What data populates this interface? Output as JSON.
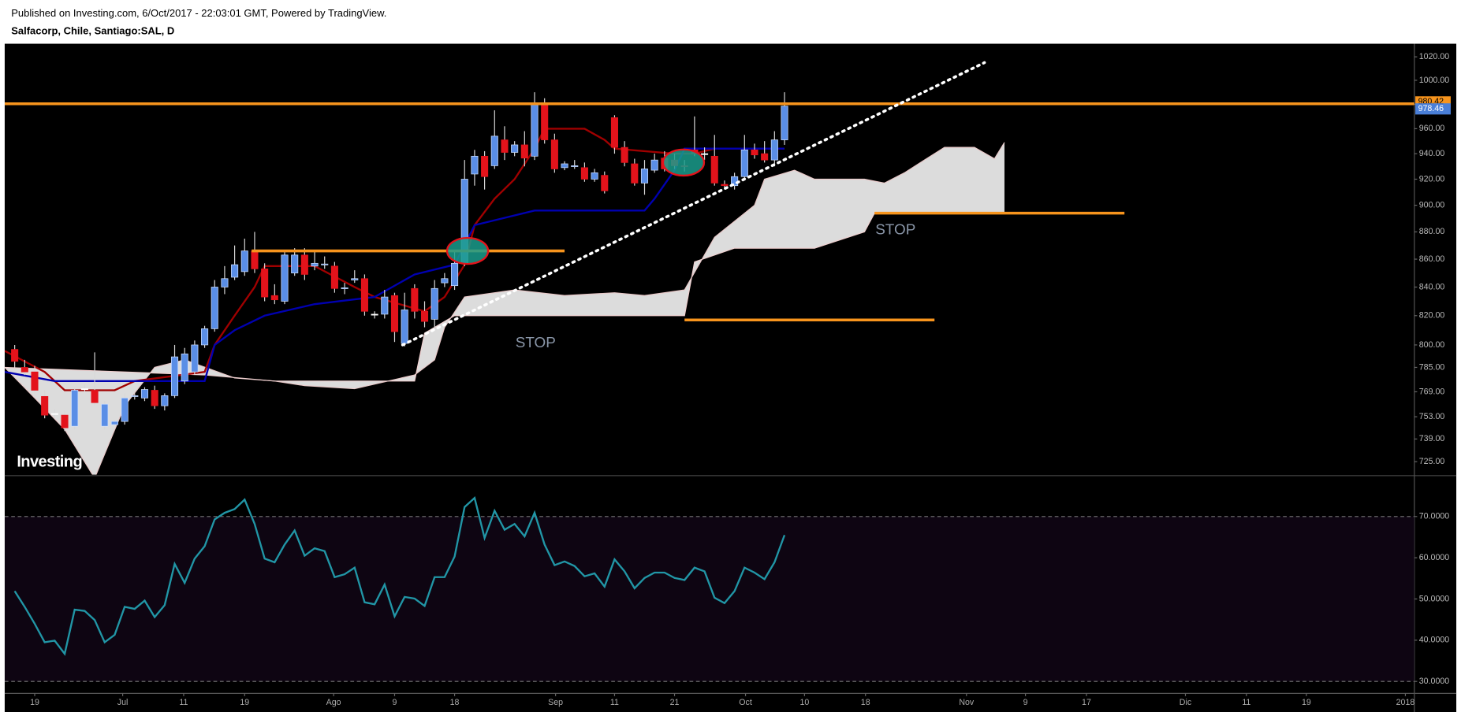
{
  "header": {
    "published": "Published on Investing.com, 6/Oct/2017 - 22:03:01 GMT, Powered by TradingView."
  },
  "chart_data": [
    {
      "type": "candlestick",
      "title": "Salfacorp, Chile, Santiago:SAL, D",
      "watermark": "Investing",
      "log_scale": true,
      "up_color": "#5a8ee6",
      "down_color": "#e3131b",
      "xlim": [
        -1,
        140
      ],
      "ylim": [
        717.1,
        1031.3
      ],
      "xticks": [
        {
          "value": 2.0,
          "label": "19"
        },
        {
          "value": 10.8,
          "label": "Jul"
        },
        {
          "value": 16.9,
          "label": "11"
        },
        {
          "value": 23.0,
          "label": "19"
        },
        {
          "value": 31.9,
          "label": "Ago"
        },
        {
          "value": 38.0,
          "label": "9"
        },
        {
          "value": 44.0,
          "label": "18"
        },
        {
          "value": 54.1,
          "label": "Sep"
        },
        {
          "value": 60.0,
          "label": "11"
        },
        {
          "value": 66.0,
          "label": "21"
        },
        {
          "value": 73.1,
          "label": "Oct"
        },
        {
          "value": 79.0,
          "label": "10"
        },
        {
          "value": 85.1,
          "label": "18"
        },
        {
          "value": 95.2,
          "label": "Nov"
        },
        {
          "value": 101.1,
          "label": "9"
        },
        {
          "value": 107.2,
          "label": "17"
        },
        {
          "value": 117.1,
          "label": "Dic"
        },
        {
          "value": 123.2,
          "label": "11"
        },
        {
          "value": 129.2,
          "label": "19"
        },
        {
          "value": 139.1,
          "label": "2018"
        }
      ],
      "yticks": [
        {
          "value": 1020,
          "label": "1020.00"
        },
        {
          "value": 1000,
          "label": "1000.00"
        },
        {
          "value": 980,
          "label": "980.00"
        },
        {
          "value": 960,
          "label": "960.00"
        },
        {
          "value": 940,
          "label": "940.00"
        },
        {
          "value": 920,
          "label": "920.00"
        },
        {
          "value": 900,
          "label": "900.00"
        },
        {
          "value": 880,
          "label": "880.00"
        },
        {
          "value": 860,
          "label": "860.00"
        },
        {
          "value": 840,
          "label": "840.00"
        },
        {
          "value": 820,
          "label": "820.00"
        },
        {
          "value": 800,
          "label": "800.00"
        },
        {
          "value": 785,
          "label": "785.00"
        },
        {
          "value": 769,
          "label": "769.00"
        },
        {
          "value": 753,
          "label": "753.00"
        },
        {
          "value": 739,
          "label": "739.00"
        },
        {
          "value": 725,
          "label": "725.00"
        }
      ],
      "open": [
        797,
        785,
        782,
        766,
        755,
        754,
        747,
        771,
        770,
        747,
        748,
        750,
        766,
        765,
        770,
        760,
        766.5,
        776,
        782,
        800,
        811,
        840,
        847,
        851,
        866,
        853,
        834,
        830,
        850,
        863,
        855,
        856,
        855,
        839,
        845,
        846,
        821,
        821,
        834,
        801,
        839,
        823,
        817.5,
        843,
        841,
        857,
        924,
        938,
        930.5,
        951,
        941,
        947,
        938,
        981,
        951,
        929,
        930,
        929,
        920,
        923,
        969,
        945,
        932,
        917,
        927,
        936.5,
        935,
        930.5,
        943,
        940,
        938,
        916,
        915,
        922,
        943,
        940,
        935,
        951
      ],
      "high": [
        800,
        790,
        786,
        770,
        758,
        757,
        772,
        774,
        795,
        763,
        751,
        768,
        768,
        772,
        773,
        768,
        800,
        798,
        803,
        813,
        845,
        855,
        870,
        875,
        880,
        857,
        842,
        866,
        868,
        868,
        866,
        862,
        858,
        843,
        852,
        849,
        823,
        838,
        836,
        836,
        842,
        830,
        845,
        850,
        866,
        935,
        943,
        942,
        975,
        962,
        950,
        958,
        990,
        985,
        956,
        934,
        935,
        933,
        928,
        926,
        971,
        950,
        936,
        935,
        940,
        942,
        940,
        935,
        970,
        945,
        955,
        919,
        925,
        955,
        948,
        950,
        958,
        990
      ],
      "low": [
        785,
        780,
        768,
        752,
        752,
        744,
        745,
        769,
        760,
        745,
        747,
        748,
        764,
        763,
        758,
        757,
        765,
        774,
        780,
        798,
        809,
        835,
        845,
        848,
        850,
        830,
        828,
        828,
        848,
        845,
        852,
        853,
        836,
        835,
        843,
        820,
        818,
        818,
        802,
        799,
        818,
        812,
        812,
        840,
        838,
        855,
        915,
        912,
        928,
        935,
        938,
        930,
        935,
        948,
        925,
        927,
        928,
        918,
        918,
        909,
        940,
        930,
        915,
        908,
        925,
        926,
        928,
        926,
        938,
        935,
        915,
        913,
        912,
        919,
        936,
        933,
        930,
        947
      ],
      "close": [
        789,
        782,
        770,
        754,
        755,
        746,
        770,
        771,
        762,
        761,
        750,
        765,
        766.5,
        770.5,
        760,
        766.5,
        792,
        794,
        800,
        811,
        840,
        846,
        856,
        866,
        853,
        833,
        831,
        863,
        863,
        849,
        857,
        856.5,
        839,
        839.5,
        846,
        823,
        821,
        833,
        809,
        824,
        823,
        816,
        839,
        846,
        857,
        920,
        938,
        922,
        954,
        941,
        947,
        936.5,
        981,
        951,
        928,
        932,
        930.5,
        920,
        925,
        911,
        945,
        933,
        917,
        928,
        935,
        928,
        930.5,
        930,
        940,
        940,
        917,
        915,
        922,
        943,
        939,
        935,
        951,
        978.46
      ],
      "cloud": {
        "color": "#dcdcdc",
        "span_a": {
          "color": "#e8c8c8",
          "x": [
            -1,
            2,
            5,
            8,
            11,
            14,
            17,
            22,
            26,
            29,
            34,
            40,
            42,
            43,
            45,
            50,
            55,
            60,
            63,
            67,
            70,
            74,
            75,
            78,
            80,
            85,
            87,
            89,
            91,
            93,
            96,
            98,
            99
          ],
          "values": [
            785,
            765,
            745,
            715,
            760,
            785,
            790,
            778,
            776,
            773,
            771,
            780,
            790,
            812,
            833,
            838,
            834,
            836,
            834,
            838,
            876,
            900,
            920,
            927,
            920,
            920,
            917,
            925,
            935,
            945,
            945,
            936,
            949
          ]
        },
        "span_b": {
          "color": "#f0d0d0",
          "x": [
            -1,
            19,
            26,
            40,
            41,
            44,
            67,
            68,
            72,
            80,
            85,
            86,
            99
          ],
          "values": [
            785,
            780,
            776,
            776,
            808,
            820,
            820,
            858,
            868,
            868,
            880,
            894,
            894
          ]
        }
      },
      "lines": [
        {
          "color": "#a00000",
          "x": [
            -1,
            3,
            5,
            10,
            12,
            19,
            20,
            22,
            24,
            25,
            30,
            34,
            36,
            41,
            43,
            45,
            46,
            48,
            50,
            52,
            53,
            57,
            59,
            60,
            66,
            68,
            70,
            73,
            77
          ],
          "values": [
            796,
            782,
            770,
            770,
            776,
            782,
            800,
            820,
            840,
            855,
            855,
            840,
            833,
            823,
            833,
            856,
            885,
            905,
            920,
            944,
            960,
            960,
            951,
            944,
            940,
            940,
            944,
            944,
            944
          ]
        },
        {
          "color": "#0000b0",
          "x": [
            -1,
            4,
            19,
            20,
            22,
            25,
            30,
            36,
            40,
            44,
            46,
            52,
            63,
            64,
            66,
            67,
            77
          ],
          "values": [
            782,
            776,
            776,
            800,
            810,
            820,
            828,
            833,
            849,
            856,
            885,
            896,
            896,
            905,
            927,
            944,
            944
          ]
        }
      ],
      "hlines": [
        {
          "color": "#f7941d",
          "y": 980.42,
          "x": [
            -1,
            140
          ]
        },
        {
          "color": "#f7941d",
          "y": 866,
          "x": [
            23.7,
            55
          ]
        },
        {
          "color": "#f7941d",
          "y": 894,
          "x": [
            86,
            111
          ]
        },
        {
          "color": "#f7941d",
          "y": 817,
          "x": [
            67,
            92
          ]
        }
      ],
      "trendline": {
        "color": "#ffffff",
        "x": [
          38.8,
          97
        ],
        "values": [
          800,
          1015
        ]
      },
      "highlights": [
        {
          "x": 45.3,
          "y": 866
        },
        {
          "x": 66.9,
          "y": 933
        }
      ],
      "annotations": [
        {
          "text": "STOP",
          "x": 52.1,
          "y": 801
        },
        {
          "text": "STOP",
          "x": 88.1,
          "y": 881
        }
      ],
      "price_labels": [
        {
          "value": 980.42,
          "color": "#f7941d"
        },
        {
          "value": 978.46,
          "color": "#4a7fd8"
        }
      ]
    },
    {
      "type": "line",
      "xlim": [
        -1,
        140
      ],
      "ylim": [
        27.1,
        79.7
      ],
      "yticks": [
        {
          "value": 70,
          "label": "70.0000"
        },
        {
          "value": 60,
          "label": "60.0000"
        },
        {
          "value": 50,
          "label": "50.0000"
        },
        {
          "value": 40,
          "label": "40.0000"
        },
        {
          "value": 30,
          "label": "30.0000"
        }
      ],
      "band": {
        "values": [
          30,
          70
        ],
        "color": "#0e0512"
      },
      "series": [
        {
          "color": "#2196a6",
          "values": [
            51.9,
            48.1,
            44.0,
            39.5,
            39.9,
            36.7,
            47.4,
            47.1,
            44.9,
            39.5,
            41.3,
            48.1,
            47.6,
            49.6,
            45.6,
            48.5,
            58.5,
            53.9,
            59.8,
            62.8,
            69.3,
            70.9,
            71.8,
            74.1,
            68.2,
            59.8,
            58.9,
            63.2,
            66.6,
            60.5,
            62.3,
            61.6,
            55.3,
            56.0,
            57.6,
            49.2,
            48.7,
            53.5,
            45.8,
            50.5,
            50.1,
            48.3,
            55.3,
            55.3,
            60.3,
            72.3,
            74.5,
            64.8,
            71.4,
            66.8,
            68.2,
            65.2,
            70.9,
            63.2,
            58.2,
            59.1,
            58.0,
            55.5,
            56.2,
            53.0,
            59.6,
            56.7,
            52.6,
            55.1,
            56.4,
            56.4,
            55.1,
            54.6,
            57.6,
            56.7,
            50.3,
            49.0,
            51.9,
            57.6,
            56.4,
            54.8,
            58.9,
            65.5
          ]
        }
      ]
    }
  ]
}
